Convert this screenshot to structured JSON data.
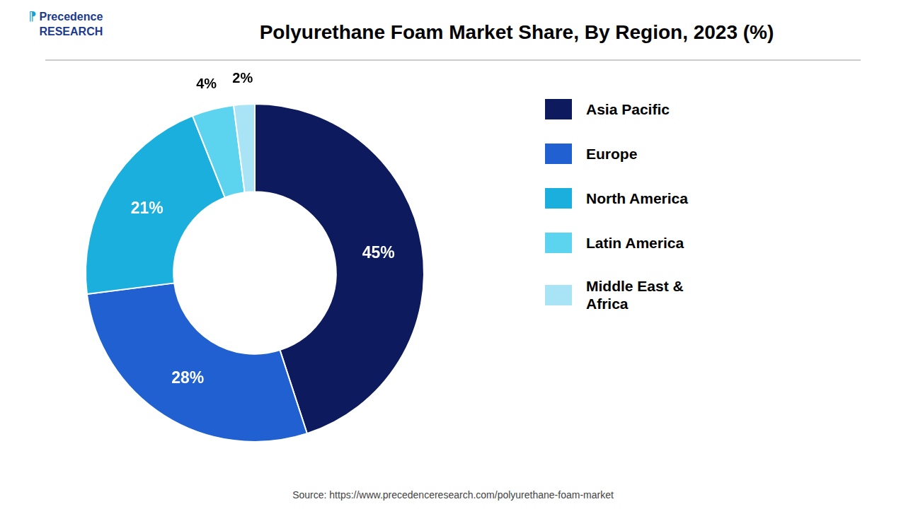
{
  "chart_data": {
    "type": "doughnut",
    "title": "Polyurethane Foam Market Share, By Region, 2023 (%)",
    "categories": [
      "Asia Pacific",
      "Europe",
      "North America",
      "Latin America",
      "Middle East &\nAfrica"
    ],
    "values": [
      45,
      28,
      21,
      4,
      2
    ],
    "value_labels": [
      "45%",
      "28%",
      "21%",
      "4%",
      "2%"
    ],
    "colors": [
      "#0d1b5e",
      "#2060d0",
      "#1aafdc",
      "#5dd4ef",
      "#a8e4f5"
    ],
    "data_labels": true,
    "legend": "right",
    "annotations": [
      "Source: https://www.precedenceresearch.com/polyurethane-foam-market",
      "Precedence\nRESEARCH",
      "⁋"
    ]
  }
}
